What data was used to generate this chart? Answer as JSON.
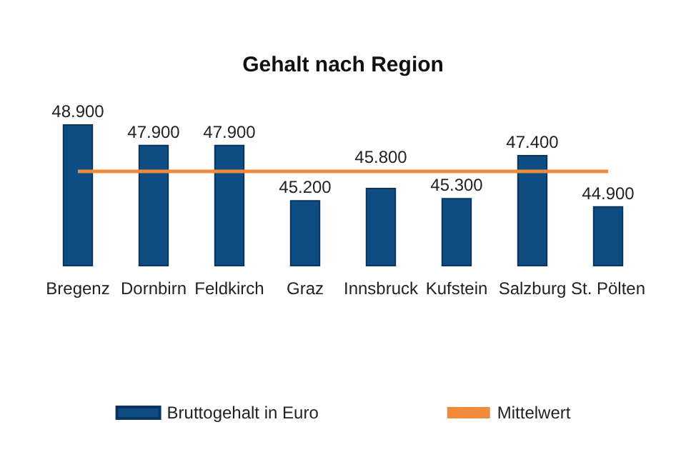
{
  "chart_data": {
    "type": "bar",
    "title": "Gehalt nach Region",
    "categories": [
      "Bregenz",
      "Dornbirn",
      "Feldkirch",
      "Graz",
      "Innsbruck",
      "Kufstein",
      "Salzburg",
      "St. Pölten"
    ],
    "series": [
      {
        "name": "Bruttogehalt in Euro",
        "color": "#0f4c81",
        "values": [
          48900,
          47900,
          47900,
          45200,
          45800,
          45300,
          47400,
          44900
        ],
        "value_labels": [
          "48.900",
          "47.900",
          "47.900",
          "45.200",
          "45.800",
          "45.300",
          "47.400",
          "44.900"
        ]
      },
      {
        "name": "Mittelwert",
        "type": "line",
        "color": "#f08a3c",
        "values": [
          46600,
          46600,
          46600,
          46600,
          46600,
          46600,
          46600,
          46600
        ],
        "marker": "none"
      }
    ],
    "ylim": [
      42000,
      48900
    ],
    "tick_labels": "x",
    "legend": "bottom"
  }
}
